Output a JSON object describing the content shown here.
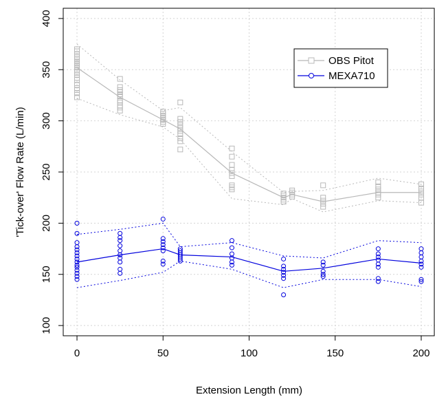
{
  "chart_data": {
    "type": "line",
    "xlabel": "Extension Length (mm)",
    "ylabel": "'Tick-over' Flow Rate (L/min)",
    "xlim": [
      -8,
      208
    ],
    "ylim": [
      90,
      410
    ],
    "x_ticks": [
      0,
      50,
      100,
      150,
      200
    ],
    "y_ticks": [
      100,
      150,
      200,
      250,
      300,
      350,
      400
    ],
    "grid": true,
    "legend_position": "top-right",
    "series": [
      {
        "name": "OBS Pitot",
        "color": "#b8b8b8",
        "marker": "square",
        "x": [
          0,
          25,
          50,
          60,
          90,
          120,
          125,
          143,
          175,
          200
        ],
        "mean": [
          352,
          323,
          301,
          292,
          249,
          225,
          228,
          221,
          230,
          230
        ],
        "upper": [
          375,
          340,
          310,
          313,
          270,
          230,
          231,
          232,
          244,
          238
        ],
        "lower": [
          322,
          306,
          294,
          282,
          224,
          218,
          224,
          211,
          222,
          220
        ],
        "points": [
          [
            0,
            370
          ],
          [
            0,
            368
          ],
          [
            0,
            365
          ],
          [
            0,
            362
          ],
          [
            0,
            360
          ],
          [
            0,
            358
          ],
          [
            0,
            356
          ],
          [
            0,
            354
          ],
          [
            0,
            352
          ],
          [
            0,
            350
          ],
          [
            0,
            348
          ],
          [
            0,
            345
          ],
          [
            0,
            342
          ],
          [
            0,
            340
          ],
          [
            0,
            335
          ],
          [
            0,
            332
          ],
          [
            0,
            330
          ],
          [
            0,
            327
          ],
          [
            0,
            323
          ],
          [
            25,
            341
          ],
          [
            25,
            333
          ],
          [
            25,
            330
          ],
          [
            25,
            328
          ],
          [
            25,
            326
          ],
          [
            25,
            324
          ],
          [
            25,
            320
          ],
          [
            25,
            318
          ],
          [
            25,
            315
          ],
          [
            25,
            313
          ],
          [
            25,
            310
          ],
          [
            50,
            309
          ],
          [
            50,
            307
          ],
          [
            50,
            305
          ],
          [
            50,
            303
          ],
          [
            50,
            301
          ],
          [
            50,
            299
          ],
          [
            50,
            297
          ],
          [
            60,
            318
          ],
          [
            60,
            302
          ],
          [
            60,
            299
          ],
          [
            60,
            296
          ],
          [
            60,
            293
          ],
          [
            60,
            290
          ],
          [
            60,
            287
          ],
          [
            60,
            283
          ],
          [
            60,
            280
          ],
          [
            60,
            272
          ],
          [
            90,
            273
          ],
          [
            90,
            265
          ],
          [
            90,
            257
          ],
          [
            90,
            252
          ],
          [
            90,
            249
          ],
          [
            90,
            246
          ],
          [
            90,
            237
          ],
          [
            90,
            235
          ],
          [
            90,
            233
          ],
          [
            120,
            229
          ],
          [
            120,
            227
          ],
          [
            120,
            225
          ],
          [
            120,
            223
          ],
          [
            120,
            221
          ],
          [
            125,
            232
          ],
          [
            125,
            230
          ],
          [
            125,
            228
          ],
          [
            125,
            226
          ],
          [
            143,
            237
          ],
          [
            143,
            225
          ],
          [
            143,
            222
          ],
          [
            143,
            219
          ],
          [
            143,
            216
          ],
          [
            175,
            240
          ],
          [
            175,
            236
          ],
          [
            175,
            233
          ],
          [
            175,
            230
          ],
          [
            175,
            228
          ],
          [
            175,
            225
          ],
          [
            200,
            238
          ],
          [
            200,
            234
          ],
          [
            200,
            231
          ],
          [
            200,
            228
          ],
          [
            200,
            225
          ],
          [
            200,
            220
          ]
        ]
      },
      {
        "name": "MEXA710",
        "color": "#0000dd",
        "marker": "circle",
        "x": [
          0,
          25,
          50,
          60,
          90,
          120,
          143,
          175,
          200
        ],
        "mean": [
          162,
          169,
          175,
          169,
          167,
          153,
          156,
          165,
          161
        ],
        "upper": [
          189,
          194,
          200,
          177,
          181,
          168,
          166,
          183,
          181
        ],
        "lower": [
          137,
          144,
          152,
          163,
          155,
          137,
          145,
          145,
          138
        ],
        "points": [
          [
            0,
            200
          ],
          [
            0,
            190
          ],
          [
            0,
            181
          ],
          [
            0,
            177
          ],
          [
            0,
            174
          ],
          [
            0,
            171
          ],
          [
            0,
            168
          ],
          [
            0,
            165
          ],
          [
            0,
            162
          ],
          [
            0,
            159
          ],
          [
            0,
            157
          ],
          [
            0,
            154
          ],
          [
            0,
            151
          ],
          [
            0,
            148
          ],
          [
            0,
            145
          ],
          [
            25,
            190
          ],
          [
            25,
            186
          ],
          [
            25,
            183
          ],
          [
            25,
            178
          ],
          [
            25,
            173
          ],
          [
            25,
            169
          ],
          [
            25,
            166
          ],
          [
            25,
            162
          ],
          [
            25,
            155
          ],
          [
            25,
            151
          ],
          [
            50,
            204
          ],
          [
            50,
            185
          ],
          [
            50,
            182
          ],
          [
            50,
            179
          ],
          [
            50,
            176
          ],
          [
            50,
            173
          ],
          [
            50,
            163
          ],
          [
            50,
            160
          ],
          [
            60,
            175
          ],
          [
            60,
            173
          ],
          [
            60,
            171
          ],
          [
            60,
            169
          ],
          [
            60,
            167
          ],
          [
            60,
            165
          ],
          [
            60,
            163
          ],
          [
            90,
            183
          ],
          [
            90,
            176
          ],
          [
            90,
            170
          ],
          [
            90,
            166
          ],
          [
            90,
            162
          ],
          [
            90,
            159
          ],
          [
            120,
            165
          ],
          [
            120,
            158
          ],
          [
            120,
            155
          ],
          [
            120,
            152
          ],
          [
            120,
            149
          ],
          [
            120,
            146
          ],
          [
            120,
            130
          ],
          [
            143,
            162
          ],
          [
            143,
            159
          ],
          [
            143,
            153
          ],
          [
            143,
            150
          ],
          [
            143,
            148
          ],
          [
            175,
            175
          ],
          [
            175,
            170
          ],
          [
            175,
            167
          ],
          [
            175,
            164
          ],
          [
            175,
            160
          ],
          [
            175,
            157
          ],
          [
            175,
            146
          ],
          [
            175,
            143
          ],
          [
            200,
            175
          ],
          [
            200,
            171
          ],
          [
            200,
            167
          ],
          [
            200,
            163
          ],
          [
            200,
            160
          ],
          [
            200,
            157
          ],
          [
            200,
            145
          ],
          [
            200,
            143
          ]
        ]
      }
    ]
  }
}
